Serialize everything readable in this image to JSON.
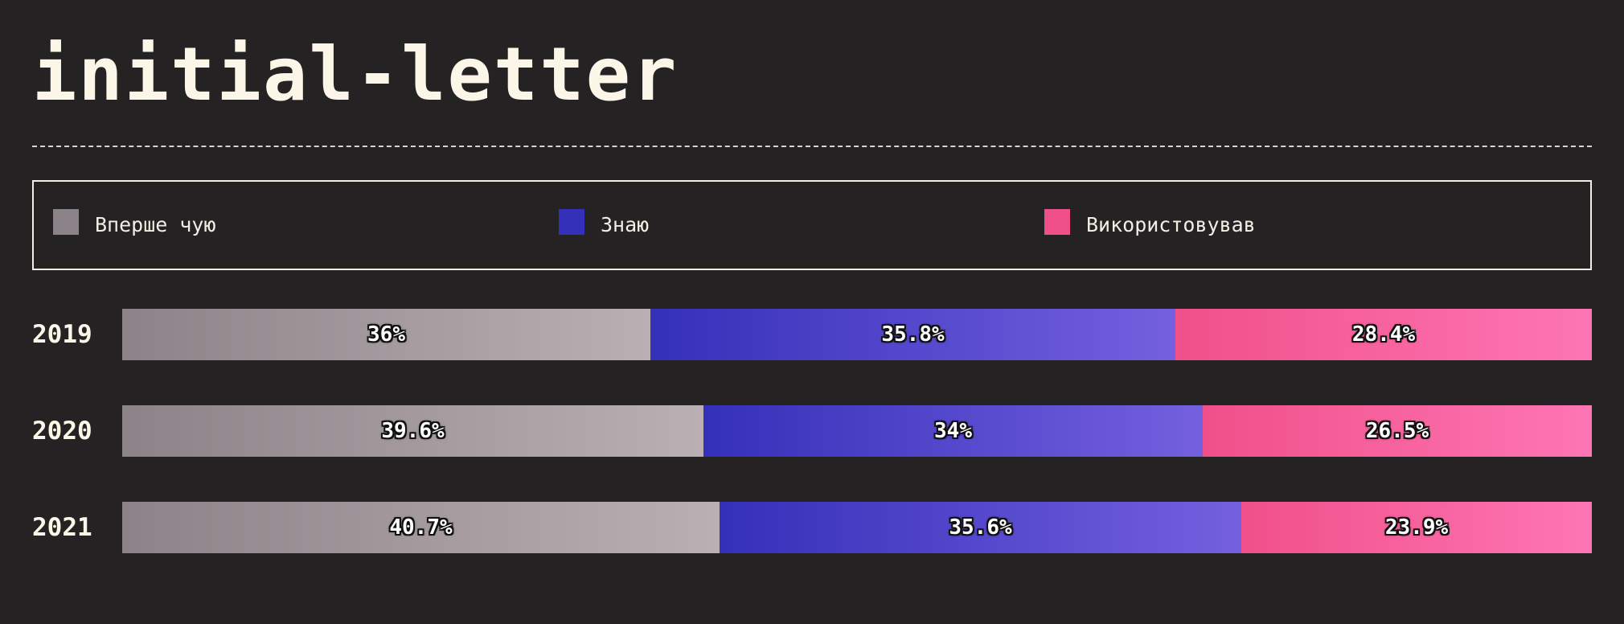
{
  "title": "initial-letter",
  "legend": [
    {
      "label": "Вперше чую",
      "color": "#8c8388"
    },
    {
      "label": "Знаю",
      "color": "#3530b9"
    },
    {
      "label": "Використовував",
      "color": "#f0508a"
    }
  ],
  "chart_data": {
    "type": "bar",
    "orientation": "horizontal",
    "stacked": true,
    "normalized": true,
    "categories": [
      "2019",
      "2020",
      "2021"
    ],
    "series": [
      {
        "name": "Вперше чую",
        "values": [
          36,
          39.6,
          40.7
        ],
        "labels": [
          "36%",
          "39.6%",
          "40.7%"
        ],
        "gradient": [
          "#8c8388",
          "#bab0b4"
        ]
      },
      {
        "name": "Знаю",
        "values": [
          35.8,
          34,
          35.6
        ],
        "labels": [
          "35.8%",
          "34%",
          "35.6%"
        ],
        "gradient": [
          "#3530b9",
          "#7460df"
        ]
      },
      {
        "name": "Використовував",
        "values": [
          28.4,
          26.5,
          23.9
        ],
        "labels": [
          "28.4%",
          "26.5%",
          "23.9%"
        ],
        "gradient": [
          "#f0508a",
          "#fe76b4"
        ]
      }
    ],
    "legend_position": "top",
    "grid": false
  }
}
